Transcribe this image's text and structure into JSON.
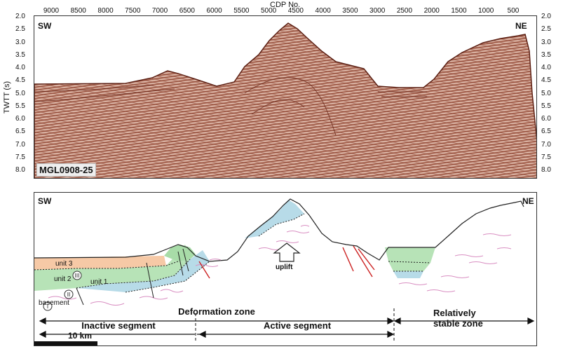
{
  "top_axis": {
    "title": "CDP No.",
    "ticks": [
      "9000",
      "8500",
      "8000",
      "7500",
      "7000",
      "6500",
      "6000",
      "5500",
      "5000",
      "4500",
      "4000",
      "3500",
      "3000",
      "2500",
      "2000",
      "1500",
      "1000",
      "500"
    ]
  },
  "y_axis": {
    "label": "TWTT (s)",
    "ticks": [
      "2.0",
      "2.5",
      "3.0",
      "3.5",
      "4.0",
      "4.5",
      "5.0",
      "5.5",
      "6.0",
      "6.5",
      "7.0",
      "7.5",
      "8.0"
    ]
  },
  "seismic": {
    "left_direction": "SW",
    "right_direction": "NE",
    "line_name": "MGL0908-25"
  },
  "interpretation": {
    "left_direction": "SW",
    "right_direction": "NE",
    "units": {
      "unit3": "unit 3",
      "unit2": "unit 2",
      "unit1": "unit 1",
      "basement": "basement"
    },
    "roman": {
      "III": "III",
      "II": "II",
      "I": "I"
    },
    "uplift": "uplift",
    "deformation_zone": "Deformation zone",
    "inactive_segment": "Inactive segment",
    "active_segment": "Active segment",
    "stable_zone": "Relatively stable zone",
    "scale_bar": "10 km"
  },
  "colors": {
    "seismic_fill": "#c48a76",
    "unit3": "#f6c9a6",
    "unit2": "#b7e3b7",
    "unit1": "#b7dbe8",
    "basement_lines": "#d98fc2",
    "faults": "#cc2222"
  }
}
